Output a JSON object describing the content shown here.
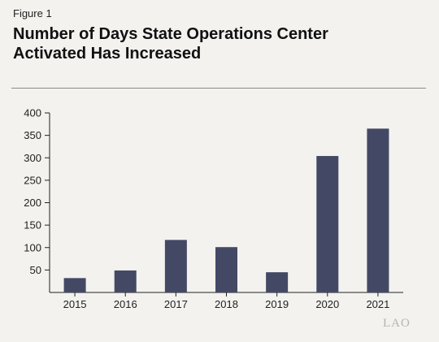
{
  "figure_label": "Figure 1",
  "title_line1": "Number of Days State Operations Center",
  "title_line2": "Activated Has Increased",
  "logo_text": "LAO",
  "colors": {
    "bar": "#434965",
    "axis": "#222222",
    "background": "#f3f2ef"
  },
  "chart_data": {
    "type": "bar",
    "title": "Number of Days State Operations Center Activated Has Increased",
    "categories": [
      "2015",
      "2016",
      "2017",
      "2018",
      "2019",
      "2020",
      "2021"
    ],
    "values": [
      32,
      49,
      117,
      101,
      45,
      304,
      365
    ],
    "ylim": [
      0,
      400
    ],
    "yticks": [
      50,
      100,
      150,
      200,
      250,
      300,
      350,
      400
    ],
    "xlabel": "",
    "ylabel": "",
    "grid": false,
    "legend": "none"
  }
}
